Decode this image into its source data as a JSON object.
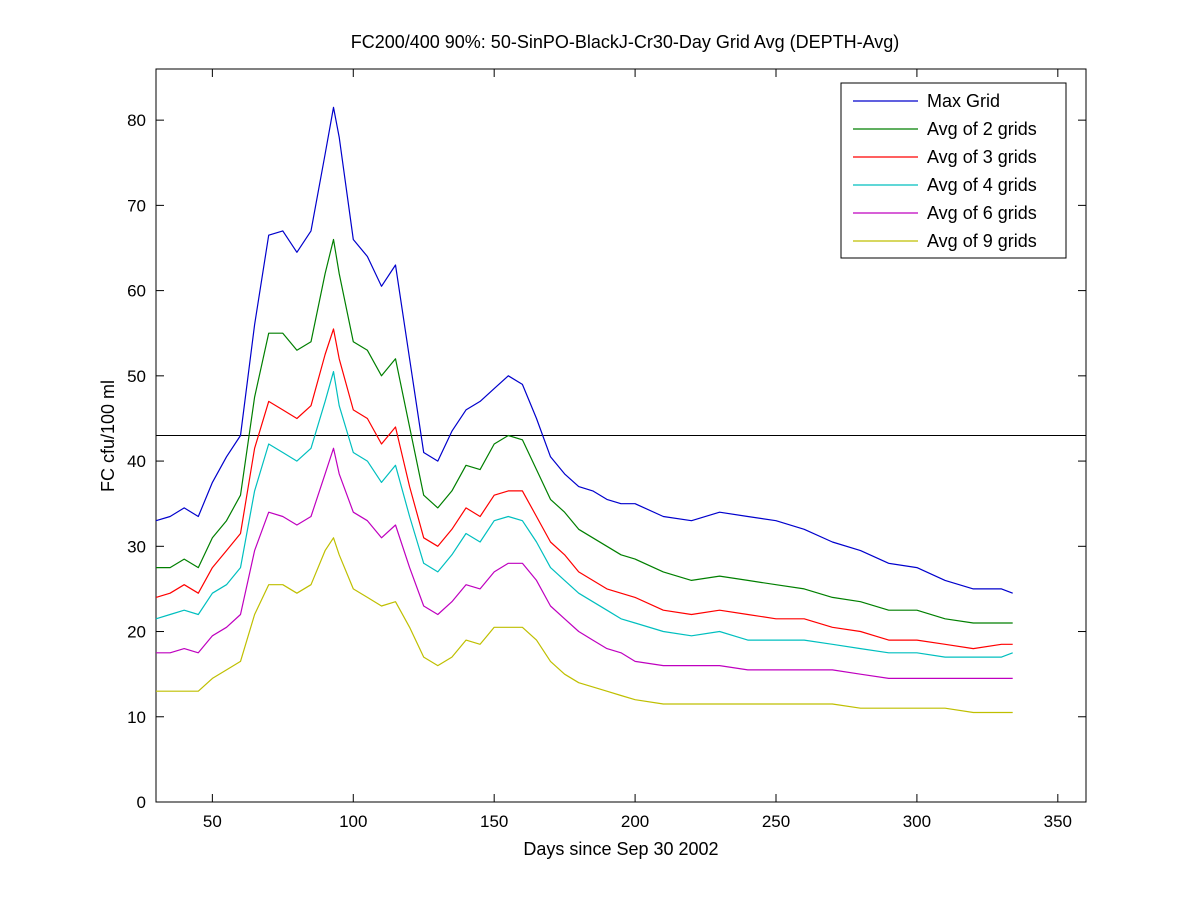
{
  "chart_data": {
    "type": "line",
    "title": "FC200/400 90%: 50-SinPO-BlackJ-Cr30-Day Grid Avg (DEPTH-Avg)",
    "xlabel": "Days since Sep 30 2002",
    "ylabel": "FC cfu/100 ml",
    "xlim": [
      30,
      360
    ],
    "ylim": [
      0,
      86
    ],
    "xticks": [
      50,
      100,
      150,
      200,
      250,
      300,
      350
    ],
    "yticks": [
      0,
      10,
      20,
      30,
      40,
      50,
      60,
      70,
      80
    ],
    "grid": false,
    "legend_position": "top-right",
    "reference_line": {
      "y": 43
    },
    "x": [
      30,
      35,
      40,
      45,
      50,
      55,
      60,
      65,
      70,
      75,
      80,
      85,
      90,
      93,
      95,
      100,
      105,
      110,
      115,
      120,
      125,
      130,
      135,
      140,
      145,
      150,
      155,
      160,
      165,
      170,
      175,
      180,
      185,
      190,
      195,
      200,
      210,
      220,
      230,
      240,
      250,
      260,
      270,
      280,
      290,
      300,
      310,
      320,
      330,
      334
    ],
    "series": [
      {
        "name": "Max Grid",
        "color": "#0000cc",
        "values": [
          33,
          33.5,
          34.5,
          33.5,
          37.5,
          40.5,
          43,
          56,
          66.5,
          67,
          64.5,
          67,
          76,
          81.5,
          78,
          66,
          64,
          60.5,
          63,
          52,
          41,
          40,
          43.5,
          46,
          47,
          48.5,
          50,
          49,
          45,
          40.5,
          38.5,
          37,
          36.5,
          35.5,
          35,
          35,
          33.5,
          33,
          34,
          33.5,
          33,
          32,
          30.5,
          29.5,
          28,
          27.5,
          26,
          25,
          25,
          24.5
        ]
      },
      {
        "name": "Avg of 2 grids",
        "color": "#007f00",
        "values": [
          27.5,
          27.5,
          28.5,
          27.5,
          31,
          33,
          36,
          47.5,
          55,
          55,
          53,
          54,
          62,
          66,
          62,
          54,
          53,
          50,
          52,
          44,
          36,
          34.5,
          36.5,
          39.5,
          39,
          42,
          43,
          42.5,
          39,
          35.5,
          34,
          32,
          31,
          30,
          29,
          28.5,
          27,
          26,
          26.5,
          26,
          25.5,
          25,
          24,
          23.5,
          22.5,
          22.5,
          21.5,
          21,
          21,
          21
        ]
      },
      {
        "name": "Avg of 3 grids",
        "color": "#ff0000",
        "values": [
          24,
          24.5,
          25.5,
          24.5,
          27.5,
          29.5,
          31.5,
          41.5,
          47,
          46,
          45,
          46.5,
          52.5,
          55.5,
          52,
          46,
          45,
          42,
          44,
          37,
          31,
          30,
          32,
          34.5,
          33.5,
          36,
          36.5,
          36.5,
          33.5,
          30.5,
          29,
          27,
          26,
          25,
          24.5,
          24,
          22.5,
          22,
          22.5,
          22,
          21.5,
          21.5,
          20.5,
          20,
          19,
          19,
          18.5,
          18,
          18.5,
          18.5
        ]
      },
      {
        "name": "Avg of 4 grids",
        "color": "#00bfbf",
        "values": [
          21.5,
          22,
          22.5,
          22,
          24.5,
          25.5,
          27.5,
          36.5,
          42,
          41,
          40,
          41.5,
          47,
          50.5,
          46.5,
          41,
          40,
          37.5,
          39.5,
          33.5,
          28,
          27,
          29,
          31.5,
          30.5,
          33,
          33.5,
          33,
          30.5,
          27.5,
          26,
          24.5,
          23.5,
          22.5,
          21.5,
          21,
          20,
          19.5,
          20,
          19,
          19,
          19,
          18.5,
          18,
          17.5,
          17.5,
          17,
          17,
          17,
          17.5
        ]
      },
      {
        "name": "Avg of 6 grids",
        "color": "#bf00bf",
        "values": [
          17.5,
          17.5,
          18,
          17.5,
          19.5,
          20.5,
          22,
          29.5,
          34,
          33.5,
          32.5,
          33.5,
          38.5,
          41.5,
          38.5,
          34,
          33,
          31,
          32.5,
          27.5,
          23,
          22,
          23.5,
          25.5,
          25,
          27,
          28,
          28,
          26,
          23,
          21.5,
          20,
          19,
          18,
          17.5,
          16.5,
          16,
          16,
          16,
          15.5,
          15.5,
          15.5,
          15.5,
          15,
          14.5,
          14.5,
          14.5,
          14.5,
          14.5,
          14.5
        ]
      },
      {
        "name": "Avg of 9 grids",
        "color": "#bfbf00",
        "values": [
          13,
          13,
          13,
          13,
          14.5,
          15.5,
          16.5,
          22,
          25.5,
          25.5,
          24.5,
          25.5,
          29.5,
          31,
          29,
          25,
          24,
          23,
          23.5,
          20.5,
          17,
          16,
          17,
          19,
          18.5,
          20.5,
          20.5,
          20.5,
          19,
          16.5,
          15,
          14,
          13.5,
          13,
          12.5,
          12,
          11.5,
          11.5,
          11.5,
          11.5,
          11.5,
          11.5,
          11.5,
          11,
          11,
          11,
          11,
          10.5,
          10.5,
          10.5
        ]
      }
    ]
  }
}
